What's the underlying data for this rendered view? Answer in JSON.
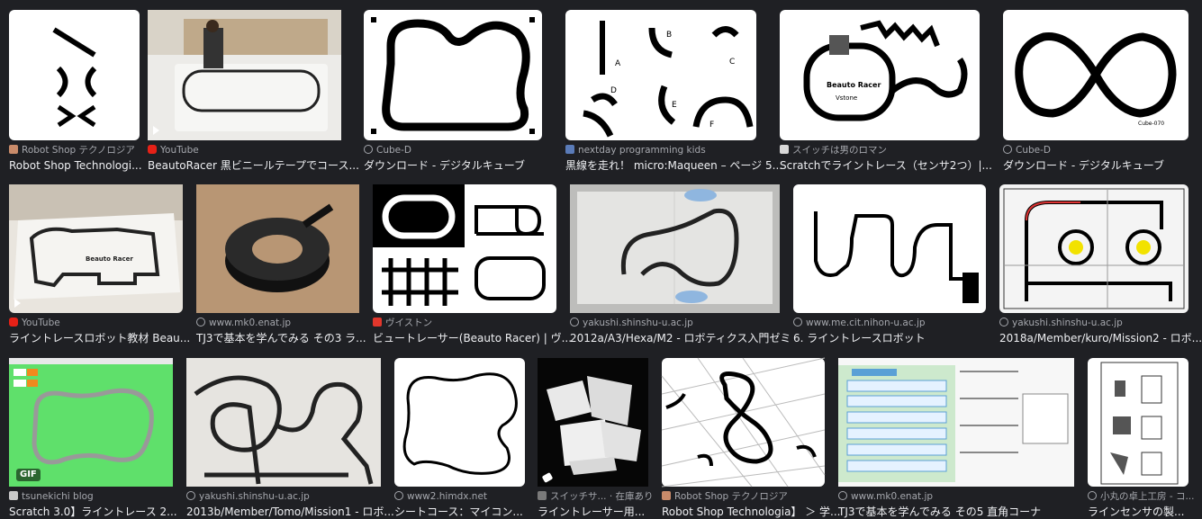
{
  "results": [
    {
      "source": "Robot Shop テクノロジア",
      "title": "Robot Shop Technologi...",
      "favicon": "robotshop-icon"
    },
    {
      "source": "YouTube",
      "title": "BeautoRacer 黒ビニールテープでコース...",
      "favicon": "youtube-icon"
    },
    {
      "source": "Cube-D",
      "title": "ダウンロード - デジタルキューブ",
      "favicon": "globe-icon"
    },
    {
      "source": "nextday programming kids",
      "title": "黒線を走れ！ micro:Maqueen – ページ 5...",
      "favicon": "nextday-icon"
    },
    {
      "source": "スイッチは男のロマン",
      "title": "Scratchでライントレース（センサ2つ）|...",
      "favicon": "switch-icon"
    },
    {
      "source": "Cube-D",
      "title": "ダウンロード - デジタルキューブ",
      "favicon": "globe-icon"
    },
    {
      "source": "YouTube",
      "title": "ライントレースロボット教材 Beau...",
      "favicon": "youtube-icon"
    },
    {
      "source": "www.mk0.enat.jp",
      "title": "TJ3で基本を学んでみる その3 ラ...",
      "favicon": "globe-icon"
    },
    {
      "source": "ヴイストン",
      "title": "ビュートレーサー(Beauto Racer) | ヴ...",
      "favicon": "vstone-icon"
    },
    {
      "source": "yakushi.shinshu-u.ac.jp",
      "title": "2012a/A3/Hexa/M2 - ロボティクス入門ゼミ",
      "favicon": "globe-icon"
    },
    {
      "source": "www.me.cit.nihon-u.ac.jp",
      "title": "6. ライントレースロボット",
      "favicon": "globe-icon"
    },
    {
      "source": "yakushi.shinshu-u.ac.jp",
      "title": "2018a/Member/kuro/Mission2 - ロボ...",
      "favicon": "globe-icon"
    },
    {
      "source": "tsunekichi blog",
      "title": "Scratch 3.0】ライントレース 2...",
      "favicon": "tsunekichi-icon"
    },
    {
      "source": "yakushi.shinshu-u.ac.jp",
      "title": "2013b/Member/Tomo/Mission1 - ロボ...",
      "favicon": "globe-icon"
    },
    {
      "source": "www2.himdx.net",
      "title": "シートコース：マイコン...",
      "favicon": "globe-icon"
    },
    {
      "source": "スイッチサ... · 在庫あり",
      "title": "ライントレーサー用...",
      "favicon": "bolt-icon"
    },
    {
      "source": "Robot Shop テクノロジア",
      "title": "Robot Shop Technologia】 ＞ 学...",
      "favicon": "robotshop-icon"
    },
    {
      "source": "www.mk0.enat.jp",
      "title": "TJ3で基本を学んでみる その5 直角コーナ",
      "favicon": "globe-icon"
    },
    {
      "source": "小丸の卓上工房 - コ...",
      "title": "ラインセンサの製...",
      "favicon": "globe-icon"
    }
  ],
  "overlays": {
    "gif_label": "GIF",
    "map_letters": [
      "A",
      "B",
      "C",
      "D",
      "E",
      "F"
    ],
    "racer_brand": "Beauto Racer",
    "vstone": "Vstone",
    "cube_code": "Cube-070"
  },
  "colors": {
    "background": "#1f2024",
    "source_text": "#a5a7ad",
    "title_text": "#eeeff2"
  }
}
